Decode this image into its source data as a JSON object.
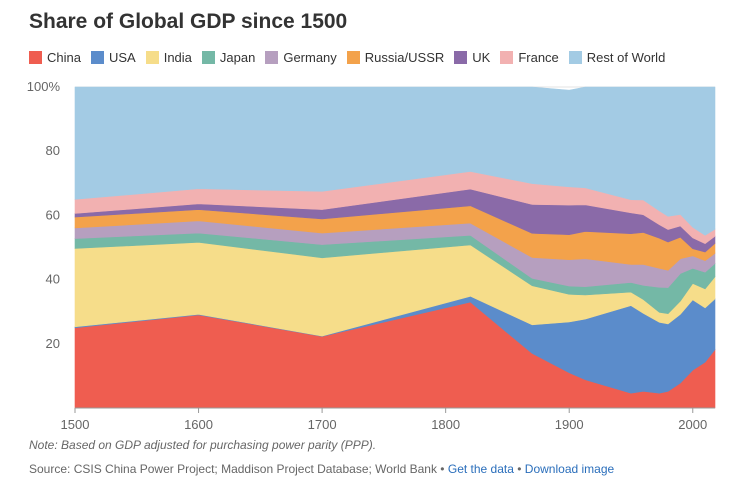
{
  "title": "Share of Global GDP since 1500",
  "note": "Note: Based on GDP adjusted for purchasing power parity (PPP).",
  "source": {
    "text": "Source: CSIS China Power Project; Maddison Project Database; World Bank •",
    "get_data": "Get the data",
    "separator": "•",
    "download": "Download image"
  },
  "chart_data": {
    "type": "area",
    "stacked": true,
    "title": "Share of Global GDP since 1500",
    "x": [
      1500,
      1600,
      1700,
      1820,
      1870,
      1900,
      1913,
      1950,
      1960,
      1973,
      1980,
      1990,
      2000,
      2010,
      2018
    ],
    "xticks": [
      1500,
      1600,
      1700,
      1800,
      1900,
      2000
    ],
    "ylim": [
      0,
      100
    ],
    "yticks": [
      20,
      40,
      60,
      80,
      100
    ],
    "ytick_labels": [
      "20",
      "40",
      "60",
      "80",
      "100%"
    ],
    "grid": true,
    "legend_position": "top",
    "series": [
      {
        "name": "China",
        "color": "#ef5d50",
        "values": [
          25,
          29,
          22.3,
          33,
          17,
          11,
          8.8,
          4.6,
          5.2,
          4.6,
          5.2,
          7.8,
          11.8,
          14.3,
          18.2
        ]
      },
      {
        "name": "USA",
        "color": "#5b8ccb",
        "values": [
          0.3,
          0.2,
          0.1,
          1.8,
          8.9,
          15.8,
          18.9,
          27.3,
          24.3,
          22.1,
          21,
          21.4,
          21.9,
          16.9,
          15.8
        ]
      },
      {
        "name": "India",
        "color": "#f6dd8a",
        "values": [
          24.4,
          22.4,
          24.4,
          16,
          12.2,
          8.6,
          7.5,
          4.2,
          4.3,
          3.1,
          3.2,
          4.1,
          5.1,
          5.9,
          6.9
        ]
      },
      {
        "name": "Japan",
        "color": "#74b8a6",
        "values": [
          3.1,
          2.9,
          4.1,
          3,
          2.3,
          2.6,
          2.6,
          3,
          4.4,
          7.8,
          8.1,
          8.6,
          4.7,
          5.2,
          4.1
        ]
      },
      {
        "name": "Germany",
        "color": "#b69fbf",
        "values": [
          3.3,
          3.8,
          3.6,
          3.8,
          6.5,
          8.2,
          8.7,
          5.6,
          6.5,
          5.9,
          5.4,
          4.6,
          3.9,
          3.6,
          3.2
        ]
      },
      {
        "name": "Russia/USSR",
        "color": "#f3a24b",
        "values": [
          3.4,
          3.5,
          4.4,
          5.4,
          7.5,
          7.8,
          8.5,
          9.6,
          10,
          9.4,
          8.8,
          6.7,
          2.2,
          2.7,
          3.1
        ]
      },
      {
        "name": "UK",
        "color": "#8a6aa8",
        "values": [
          1.1,
          1.8,
          2.9,
          5.2,
          9,
          9.2,
          8.3,
          6.5,
          5.5,
          4.2,
          3.9,
          3.5,
          3.4,
          2.6,
          2.2
        ]
      },
      {
        "name": "France",
        "color": "#f2b1b1",
        "values": [
          4.4,
          4.7,
          5.7,
          5.5,
          6.5,
          5.7,
          5.3,
          4.1,
          4.6,
          4.3,
          4.1,
          3.6,
          3.3,
          2.6,
          2.2
        ]
      },
      {
        "name": "Rest of World",
        "color": "#a3cbe4",
        "values": [
          35,
          31.7,
          32.5,
          26.3,
          30.1,
          30.1,
          31.4,
          35.1,
          35.2,
          38.6,
          40.3,
          39.7,
          43.7,
          46.2,
          44.3
        ]
      }
    ]
  }
}
